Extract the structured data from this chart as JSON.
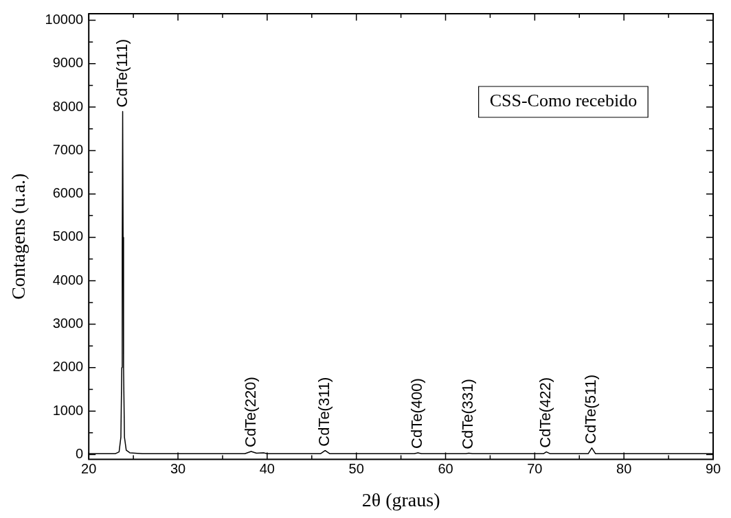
{
  "chart_data": {
    "type": "line",
    "xlabel": "2θ (graus)",
    "ylabel": "Contagens (u.a.)",
    "xlim": [
      20,
      90
    ],
    "ylim": [
      -110,
      10150
    ],
    "xticks": [
      20,
      {
        "value": 25,
        "label": null
      },
      30,
      {
        "value": 35,
        "label": null
      },
      40,
      {
        "value": 45,
        "label": null
      },
      50,
      {
        "value": 55,
        "label": null
      },
      60,
      {
        "value": 65,
        "label": null
      },
      70,
      {
        "value": 75,
        "label": null
      },
      80,
      {
        "value": 85,
        "label": null
      },
      90
    ],
    "yticks": [
      0,
      {
        "value": 500,
        "label": null
      },
      1000,
      {
        "value": 1500,
        "label": null
      },
      2000,
      {
        "value": 2500,
        "label": null
      },
      3000,
      {
        "value": 3500,
        "label": null
      },
      4000,
      {
        "value": 4500,
        "label": null
      },
      5000,
      {
        "value": 5500,
        "label": null
      },
      6000,
      {
        "value": 6500,
        "label": null
      },
      7000,
      {
        "value": 7500,
        "label": null
      },
      8000,
      {
        "value": 8500,
        "label": null
      },
      9000,
      {
        "value": 9500,
        "label": null
      },
      10000
    ],
    "grid": false,
    "legend": false,
    "marker": "none",
    "line_style": "solid",
    "series": [
      {
        "color": "#000000",
        "x": [
          20,
          23,
          23.4,
          23.6,
          23.7,
          23.75,
          23.8,
          23.85,
          23.9,
          24,
          24.2,
          24.6,
          26,
          37.5,
          38.2,
          38.8,
          39.6,
          40,
          46,
          46.5,
          47,
          56.5,
          56.9,
          57.3,
          62.3,
          62.6,
          63,
          71,
          71.3,
          71.7,
          76,
          76.4,
          76.8,
          90
        ],
        "values": [
          20,
          20,
          60,
          400,
          2000,
          4700,
          7900,
          5000,
          2000,
          400,
          100,
          40,
          20,
          20,
          70,
          30,
          40,
          20,
          20,
          90,
          20,
          20,
          40,
          20,
          20,
          30,
          20,
          20,
          60,
          20,
          20,
          150,
          20,
          20
        ]
      }
    ],
    "annotations": [
      "CSS-Como recebido",
      {
        "text": "CdTe(111)",
        "x": 23.8,
        "y": 7900
      },
      {
        "text": "CdTe(220)",
        "x": 38.2,
        "y": 70
      },
      {
        "text": "CdTe(311)",
        "x": 46.5,
        "y": 90
      },
      {
        "text": "CdTe(400)",
        "x": 56.9,
        "y": 40
      },
      {
        "text": "CdTe(331)",
        "x": 62.6,
        "y": 25
      },
      {
        "text": "CdTe(422)",
        "x": 71.3,
        "y": 60
      },
      {
        "text": "CdTe(511)",
        "x": 76.4,
        "y": 150
      }
    ]
  }
}
